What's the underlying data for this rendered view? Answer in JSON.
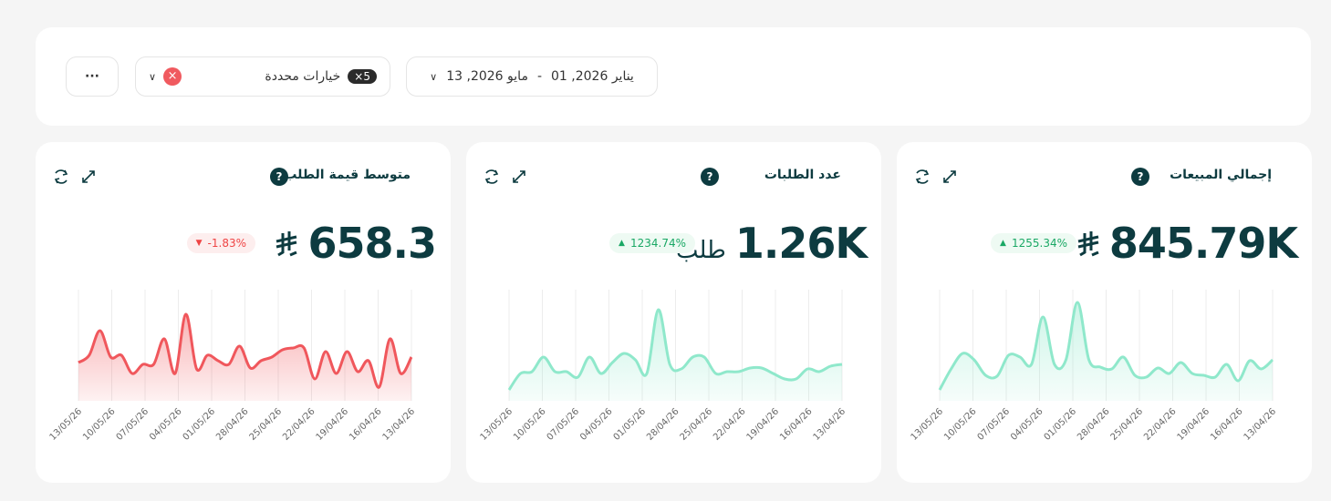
{
  "filters": {
    "date_from": "يناير 2026, 01",
    "date_separator": "-",
    "date_to": "مايو 2026, 13",
    "selection_label": "خيارات محددة",
    "selection_count": "5"
  },
  "cards": [
    {
      "title": "إجمالي المبيعات",
      "value": "845.79K",
      "change": "1255.34%",
      "trend": "up",
      "color": "#8fe8cb",
      "chart": {
        "categories": [
          "13/05/26",
          "10/05/26",
          "07/05/26",
          "04/05/26",
          "01/05/26",
          "28/04/26",
          "25/04/26",
          "22/04/26",
          "19/04/26",
          "16/04/26",
          "13/04/26"
        ],
        "values": [
          12,
          35,
          52,
          45,
          28,
          27,
          50,
          48,
          40,
          92,
          40,
          45,
          108,
          45,
          37,
          35,
          48,
          28,
          26,
          36,
          30,
          42,
          30,
          28,
          26,
          40,
          22,
          44,
          35,
          45
        ]
      }
    },
    {
      "title": "عدد الطلبات",
      "value": "1.26K",
      "unit": "طلب",
      "change": "1234.74%",
      "trend": "up",
      "color": "#8fe8cb",
      "chart": {
        "categories": [
          "13/05/26",
          "10/05/26",
          "07/05/26",
          "04/05/26",
          "01/05/26",
          "28/04/26",
          "25/04/26",
          "22/04/26",
          "19/04/26",
          "16/04/26",
          "13/04/26"
        ],
        "values": [
          12,
          30,
          32,
          48,
          32,
          32,
          26,
          48,
          30,
          42,
          52,
          45,
          30,
          100,
          40,
          35,
          48,
          48,
          30,
          32,
          32,
          36,
          36,
          30,
          24,
          24,
          35,
          32,
          38,
          40
        ]
      }
    },
    {
      "title": "متوسط قيمة الطلب",
      "value": "658.3",
      "change": "-1.83%",
      "trend": "down",
      "color": "#f0575c",
      "chart": {
        "categories": [
          "13/05/26",
          "10/05/26",
          "07/05/26",
          "04/05/26",
          "01/05/26",
          "28/04/26",
          "25/04/26",
          "22/04/26",
          "19/04/26",
          "16/04/26",
          "13/04/26"
        ],
        "values": [
          42,
          50,
          77,
          48,
          50,
          30,
          40,
          40,
          68,
          30,
          95,
          35,
          50,
          44,
          40,
          60,
          36,
          44,
          48,
          56,
          58,
          58,
          24,
          54,
          30,
          54,
          32,
          44,
          15,
          68,
          30,
          48
        ]
      }
    }
  ]
}
